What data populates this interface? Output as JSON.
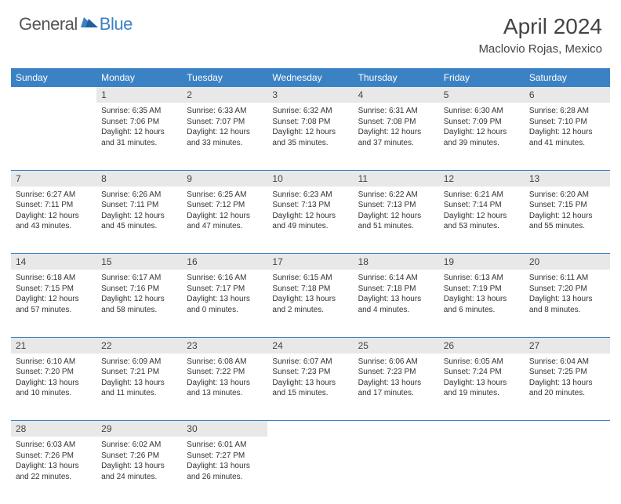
{
  "brand": {
    "part1": "General",
    "part2": "Blue"
  },
  "title": "April 2024",
  "location": "Maclovio Rojas, Mexico",
  "colors": {
    "header_bg": "#3b82c4",
    "daynum_bg": "#e8e8e8",
    "text": "#333333",
    "border": "#3b82c4"
  },
  "weekdays": [
    "Sunday",
    "Monday",
    "Tuesday",
    "Wednesday",
    "Thursday",
    "Friday",
    "Saturday"
  ],
  "weeks": [
    [
      null,
      {
        "n": 1,
        "rise": "6:35 AM",
        "set": "7:06 PM",
        "dh": 12,
        "dm": 31
      },
      {
        "n": 2,
        "rise": "6:33 AM",
        "set": "7:07 PM",
        "dh": 12,
        "dm": 33
      },
      {
        "n": 3,
        "rise": "6:32 AM",
        "set": "7:08 PM",
        "dh": 12,
        "dm": 35
      },
      {
        "n": 4,
        "rise": "6:31 AM",
        "set": "7:08 PM",
        "dh": 12,
        "dm": 37
      },
      {
        "n": 5,
        "rise": "6:30 AM",
        "set": "7:09 PM",
        "dh": 12,
        "dm": 39
      },
      {
        "n": 6,
        "rise": "6:28 AM",
        "set": "7:10 PM",
        "dh": 12,
        "dm": 41
      }
    ],
    [
      {
        "n": 7,
        "rise": "6:27 AM",
        "set": "7:11 PM",
        "dh": 12,
        "dm": 43
      },
      {
        "n": 8,
        "rise": "6:26 AM",
        "set": "7:11 PM",
        "dh": 12,
        "dm": 45
      },
      {
        "n": 9,
        "rise": "6:25 AM",
        "set": "7:12 PM",
        "dh": 12,
        "dm": 47
      },
      {
        "n": 10,
        "rise": "6:23 AM",
        "set": "7:13 PM",
        "dh": 12,
        "dm": 49
      },
      {
        "n": 11,
        "rise": "6:22 AM",
        "set": "7:13 PM",
        "dh": 12,
        "dm": 51
      },
      {
        "n": 12,
        "rise": "6:21 AM",
        "set": "7:14 PM",
        "dh": 12,
        "dm": 53
      },
      {
        "n": 13,
        "rise": "6:20 AM",
        "set": "7:15 PM",
        "dh": 12,
        "dm": 55
      }
    ],
    [
      {
        "n": 14,
        "rise": "6:18 AM",
        "set": "7:15 PM",
        "dh": 12,
        "dm": 57
      },
      {
        "n": 15,
        "rise": "6:17 AM",
        "set": "7:16 PM",
        "dh": 12,
        "dm": 58
      },
      {
        "n": 16,
        "rise": "6:16 AM",
        "set": "7:17 PM",
        "dh": 13,
        "dm": 0
      },
      {
        "n": 17,
        "rise": "6:15 AM",
        "set": "7:18 PM",
        "dh": 13,
        "dm": 2
      },
      {
        "n": 18,
        "rise": "6:14 AM",
        "set": "7:18 PM",
        "dh": 13,
        "dm": 4
      },
      {
        "n": 19,
        "rise": "6:13 AM",
        "set": "7:19 PM",
        "dh": 13,
        "dm": 6
      },
      {
        "n": 20,
        "rise": "6:11 AM",
        "set": "7:20 PM",
        "dh": 13,
        "dm": 8
      }
    ],
    [
      {
        "n": 21,
        "rise": "6:10 AM",
        "set": "7:20 PM",
        "dh": 13,
        "dm": 10
      },
      {
        "n": 22,
        "rise": "6:09 AM",
        "set": "7:21 PM",
        "dh": 13,
        "dm": 11
      },
      {
        "n": 23,
        "rise": "6:08 AM",
        "set": "7:22 PM",
        "dh": 13,
        "dm": 13
      },
      {
        "n": 24,
        "rise": "6:07 AM",
        "set": "7:23 PM",
        "dh": 13,
        "dm": 15
      },
      {
        "n": 25,
        "rise": "6:06 AM",
        "set": "7:23 PM",
        "dh": 13,
        "dm": 17
      },
      {
        "n": 26,
        "rise": "6:05 AM",
        "set": "7:24 PM",
        "dh": 13,
        "dm": 19
      },
      {
        "n": 27,
        "rise": "6:04 AM",
        "set": "7:25 PM",
        "dh": 13,
        "dm": 20
      }
    ],
    [
      {
        "n": 28,
        "rise": "6:03 AM",
        "set": "7:26 PM",
        "dh": 13,
        "dm": 22
      },
      {
        "n": 29,
        "rise": "6:02 AM",
        "set": "7:26 PM",
        "dh": 13,
        "dm": 24
      },
      {
        "n": 30,
        "rise": "6:01 AM",
        "set": "7:27 PM",
        "dh": 13,
        "dm": 26
      },
      null,
      null,
      null,
      null
    ]
  ]
}
